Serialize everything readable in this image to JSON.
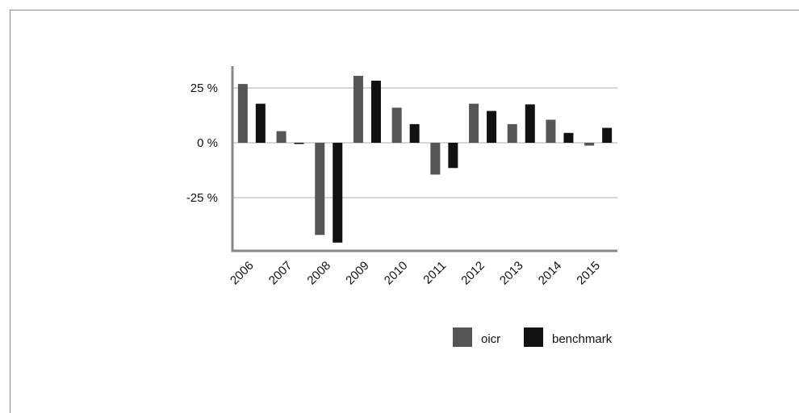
{
  "chart_data": {
    "type": "bar",
    "categories": [
      "2006",
      "2007",
      "2008",
      "2009",
      "2010",
      "2011",
      "2012",
      "2013",
      "2014",
      "2015"
    ],
    "series": [
      {
        "name": "oicr",
        "color": "#555555",
        "values": [
          26.8,
          5.3,
          -42.0,
          30.5,
          16.0,
          -14.5,
          17.8,
          8.5,
          10.5,
          -1.3
        ]
      },
      {
        "name": "benchmark",
        "color": "#111111",
        "values": [
          17.8,
          -0.3,
          -45.5,
          28.3,
          8.5,
          -11.5,
          14.5,
          17.5,
          4.5,
          6.8
        ]
      }
    ],
    "yticks": [
      {
        "value": 25,
        "label": "25 %"
      },
      {
        "value": 0,
        "label": "0 %"
      },
      {
        "value": -25,
        "label": "-25 %"
      }
    ],
    "ylim": [
      -50,
      35
    ],
    "grid": true,
    "legend": "bottom-right",
    "title": "",
    "xlabel": "",
    "ylabel": ""
  }
}
